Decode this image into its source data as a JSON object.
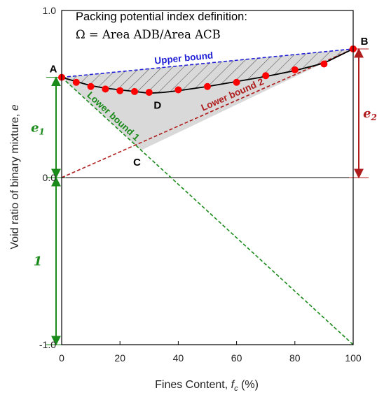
{
  "chart_data": {
    "type": "line",
    "xlabel_prefix": "Fines Content, ",
    "xlabel_var": "f",
    "xlabel_sub": "c",
    "xlabel_suffix": " (%)",
    "ylabel_prefix": "Void ratio of binary mixture, ",
    "ylabel_var": "e",
    "xlim": [
      0,
      100
    ],
    "ylim": [
      -1.0,
      1.0
    ],
    "x_ticks": [
      0,
      20,
      40,
      60,
      80,
      100
    ],
    "x_tick_labels": [
      "0",
      "20",
      "40",
      "60",
      "80",
      "100"
    ],
    "y_ticks": [
      1.0,
      0.0,
      -1.0
    ],
    "y_tick_labels": [
      "1.0",
      "0.0",
      "-1.0"
    ],
    "grid": false,
    "series": [
      {
        "name": "",
        "kind": "measured",
        "color": "#ff0000",
        "x": [
          0,
          5,
          10,
          15,
          20,
          25,
          30,
          40,
          50,
          60,
          70,
          80,
          90,
          100
        ],
        "y": [
          0.6,
          0.57,
          0.545,
          0.53,
          0.52,
          0.515,
          0.51,
          0.525,
          0.545,
          0.57,
          0.61,
          0.645,
          0.68,
          0.77
        ]
      },
      {
        "name": "Upper bound",
        "color": "#1f1fd6",
        "x": [
          0,
          100
        ],
        "y": [
          0.6,
          0.77
        ]
      },
      {
        "name": "Lower bound 1",
        "color": "#1a8a1a",
        "x": [
          0,
          100
        ],
        "y": [
          0.6,
          -1.0
        ]
      },
      {
        "name": "Lower bound 2",
        "color": "#b01c1c",
        "x": [
          0,
          100
        ],
        "y": [
          0.0,
          0.77
        ]
      }
    ],
    "fit_curve": {
      "x": [
        0,
        5,
        10,
        15,
        20,
        25,
        30,
        35,
        40,
        50,
        60,
        70,
        80,
        90,
        100
      ],
      "y": [
        0.6,
        0.575,
        0.55,
        0.535,
        0.525,
        0.515,
        0.505,
        0.51,
        0.52,
        0.545,
        0.575,
        0.605,
        0.64,
        0.685,
        0.77
      ]
    },
    "points": [
      {
        "label": "A",
        "x": 0,
        "y": 0.6
      },
      {
        "label": "B",
        "x": 100,
        "y": 0.77
      },
      {
        "label": "C",
        "x": 27.3,
        "y": 0.164
      },
      {
        "label": "D",
        "x": 30,
        "y": 0.505
      }
    ],
    "dimension_markers": [
      {
        "label": "e",
        "sub": "1",
        "color": "#1a8a1a",
        "x": 0,
        "from": 0.0,
        "to": 0.6
      },
      {
        "label": "1",
        "sub": "",
        "color": "#1a8a1a",
        "x": 0,
        "from": -1.0,
        "to": 0.0
      },
      {
        "label": "e",
        "sub": "2",
        "color": "#b01c1c",
        "x": 100,
        "from": 0.0,
        "to": 0.77
      }
    ],
    "annotation_title": "Packing potential index definition:",
    "annotation_formula": "Ω = Area ADB/Area ACB",
    "colors": {
      "fill_region": "#d9d9d9",
      "hatch": "#555555",
      "curve": "#000000"
    }
  }
}
